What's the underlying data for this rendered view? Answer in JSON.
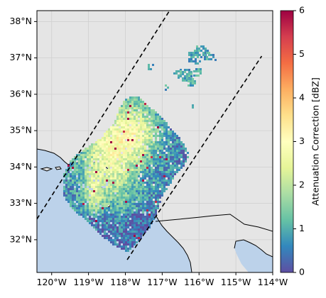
{
  "map": {
    "extent": {
      "lon_min": -120.4,
      "lon_max": -114.0,
      "lat_min": 31.1,
      "lat_max": 38.3
    },
    "lat_ticks": [
      {
        "value": 32,
        "label": "32°N"
      },
      {
        "value": 33,
        "label": "33°N"
      },
      {
        "value": 34,
        "label": "34°N"
      },
      {
        "value": 35,
        "label": "35°N"
      },
      {
        "value": 36,
        "label": "36°N"
      },
      {
        "value": 37,
        "label": "37°N"
      },
      {
        "value": 38,
        "label": "38°N"
      }
    ],
    "lon_ticks": [
      {
        "value": -120,
        "label": "120°W"
      },
      {
        "value": -119,
        "label": "119°W"
      },
      {
        "value": -118,
        "label": "118°W"
      },
      {
        "value": -117,
        "label": "117°W"
      },
      {
        "value": -116,
        "label": "116°W"
      },
      {
        "value": -115,
        "label": "115°W"
      },
      {
        "value": -114,
        "label": "114°W"
      }
    ],
    "colors": {
      "land": "#e5e5e5",
      "ocean": "#bcd2ea",
      "grid": "#cfcfcf"
    },
    "swath_edges": [
      [
        [
          -120.4,
          32.57
        ],
        [
          -116.8,
          38.3
        ]
      ],
      [
        [
          -117.95,
          31.45
        ],
        [
          -114.3,
          37.05
        ]
      ]
    ]
  },
  "colorbar": {
    "label": "Attenuation Correction [dBZ]",
    "ticks": [
      "0",
      "1",
      "2",
      "3",
      "4",
      "5",
      "6"
    ],
    "vmin": 0,
    "vmax": 6,
    "colormap": "Spectral_r",
    "stops": [
      "#5e4fa2",
      "#3288bd",
      "#66c2a5",
      "#abdda4",
      "#e6f598",
      "#ffffbf",
      "#fee08b",
      "#fdae61",
      "#f46d43",
      "#d53e4f",
      "#9e0142"
    ]
  }
}
